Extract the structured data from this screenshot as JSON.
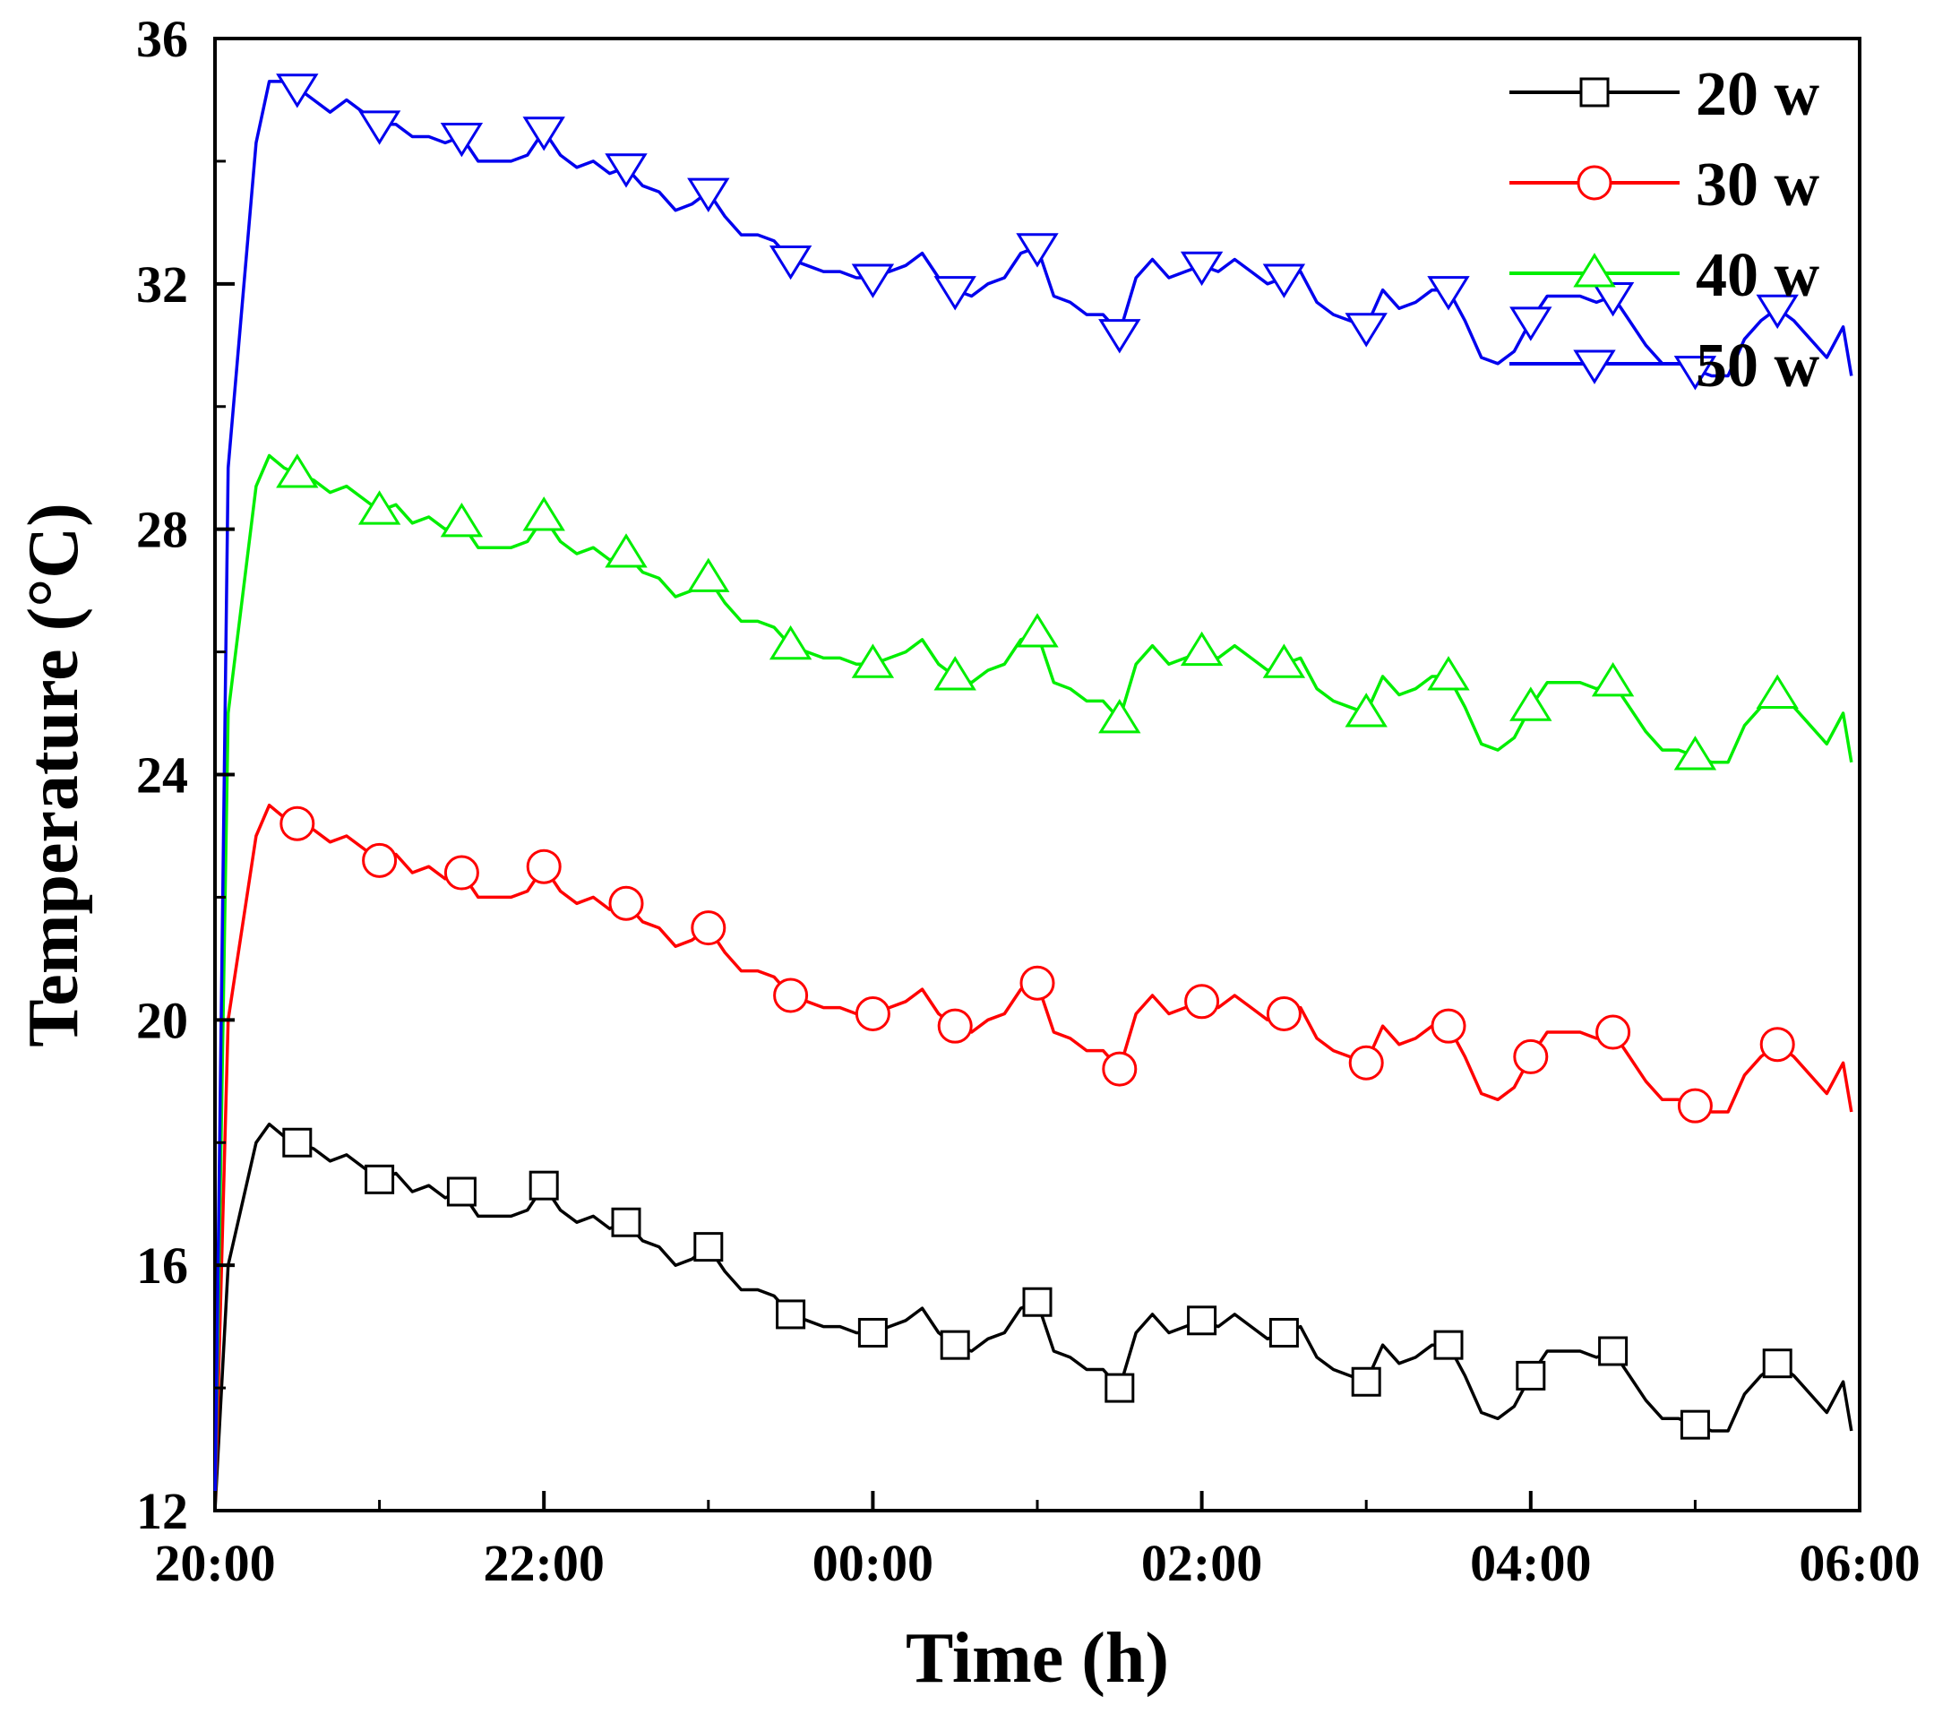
{
  "chart_data": {
    "type": "line",
    "title": "",
    "xlabel": "Time (h)",
    "ylabel": "Temperature (°C)",
    "xlim": [
      0,
      10
    ],
    "ylim": [
      12,
      36
    ],
    "xticks": [
      0,
      2,
      4,
      6,
      8,
      10
    ],
    "xtick_labels": [
      "20:00",
      "22:00",
      "00:00",
      "02:00",
      "04:00",
      "06:00"
    ],
    "yticks": [
      12,
      16,
      20,
      24,
      28,
      32,
      36
    ],
    "ytick_labels": [
      "12",
      "16",
      "20",
      "24",
      "28",
      "32",
      "36"
    ],
    "grid": false,
    "legend_position": "top-right",
    "x": [
      0,
      0.08,
      0.25,
      0.33,
      0.42,
      0.5,
      0.6,
      0.7,
      0.8,
      0.9,
      1.0,
      1.1,
      1.2,
      1.3,
      1.4,
      1.5,
      1.6,
      1.7,
      1.8,
      1.9,
      2.0,
      2.1,
      2.2,
      2.3,
      2.4,
      2.5,
      2.6,
      2.7,
      2.8,
      2.9,
      3.0,
      3.1,
      3.2,
      3.3,
      3.4,
      3.5,
      3.6,
      3.7,
      3.8,
      3.9,
      4.0,
      4.1,
      4.2,
      4.3,
      4.4,
      4.5,
      4.6,
      4.7,
      4.8,
      4.9,
      5.0,
      5.1,
      5.2,
      5.3,
      5.4,
      5.5,
      5.6,
      5.7,
      5.8,
      5.9,
      6.0,
      6.1,
      6.2,
      6.3,
      6.4,
      6.5,
      6.6,
      6.7,
      6.8,
      6.9,
      7.0,
      7.1,
      7.2,
      7.3,
      7.4,
      7.5,
      7.6,
      7.7,
      7.8,
      7.9,
      8.0,
      8.1,
      8.2,
      8.3,
      8.4,
      8.5,
      8.6,
      8.7,
      8.8,
      8.9,
      9.0,
      9.1,
      9.2,
      9.3,
      9.4,
      9.5,
      9.6,
      9.7,
      9.8,
      9.9,
      9.95
    ],
    "series": [
      {
        "name": "20 w",
        "color": "#000000",
        "marker": "square",
        "marker_x": [
          0.5,
          1.0,
          1.5,
          2.0,
          2.5,
          3.0,
          3.5,
          4.0,
          4.5,
          5.0,
          5.5,
          6.0,
          6.5,
          7.0,
          7.5,
          8.0,
          8.5,
          9.0,
          9.5
        ],
        "values": [
          12.0,
          16.0,
          18.0,
          18.3,
          18.1,
          18.0,
          17.9,
          17.7,
          17.8,
          17.6,
          17.4,
          17.5,
          17.2,
          17.3,
          17.1,
          17.2,
          16.8,
          16.8,
          16.8,
          16.9,
          17.3,
          16.9,
          16.7,
          16.8,
          16.6,
          16.7,
          16.4,
          16.3,
          16.0,
          16.1,
          16.3,
          15.9,
          15.6,
          15.6,
          15.5,
          15.2,
          15.1,
          15.0,
          15.0,
          14.9,
          14.9,
          15.0,
          15.1,
          15.3,
          14.9,
          14.7,
          14.6,
          14.8,
          14.9,
          15.3,
          15.4,
          14.6,
          14.5,
          14.3,
          14.3,
          14.0,
          14.9,
          15.2,
          14.9,
          15.0,
          15.1,
          15.0,
          15.2,
          15.0,
          14.8,
          14.9,
          15.0,
          14.5,
          14.3,
          14.2,
          14.1,
          14.7,
          14.4,
          14.5,
          14.7,
          14.7,
          14.2,
          13.6,
          13.5,
          13.7,
          14.2,
          14.6,
          14.6,
          14.6,
          14.5,
          14.6,
          14.2,
          13.8,
          13.5,
          13.5,
          13.4,
          13.3,
          13.3,
          13.9,
          14.2,
          14.4,
          14.2,
          13.9,
          13.6,
          14.1,
          13.3
        ]
      },
      {
        "name": "30 w",
        "color": "#ff0000",
        "marker": "circle",
        "marker_x": [
          0.5,
          1.0,
          1.5,
          2.0,
          2.5,
          3.0,
          3.5,
          4.0,
          4.5,
          5.0,
          5.5,
          6.0,
          6.5,
          7.0,
          7.5,
          8.0,
          8.5,
          9.0,
          9.5
        ],
        "values": [
          12.0,
          20.0,
          23.0,
          23.5,
          23.3,
          23.2,
          23.1,
          22.9,
          23.0,
          22.8,
          22.6,
          22.7,
          22.4,
          22.5,
          22.3,
          22.4,
          22.0,
          22.0,
          22.0,
          22.1,
          22.5,
          22.1,
          21.9,
          22.0,
          21.8,
          21.9,
          21.6,
          21.5,
          21.2,
          21.3,
          21.5,
          21.1,
          20.8,
          20.8,
          20.7,
          20.4,
          20.3,
          20.2,
          20.2,
          20.1,
          20.1,
          20.2,
          20.3,
          20.5,
          20.1,
          19.9,
          19.8,
          20.0,
          20.1,
          20.5,
          20.6,
          19.8,
          19.7,
          19.5,
          19.5,
          19.2,
          20.1,
          20.4,
          20.1,
          20.2,
          20.3,
          20.2,
          20.4,
          20.2,
          20.0,
          20.1,
          20.2,
          19.7,
          19.5,
          19.4,
          19.3,
          19.9,
          19.6,
          19.7,
          19.9,
          19.9,
          19.4,
          18.8,
          18.7,
          18.9,
          19.4,
          19.8,
          19.8,
          19.8,
          19.7,
          19.8,
          19.4,
          19.0,
          18.7,
          18.7,
          18.6,
          18.5,
          18.5,
          19.1,
          19.4,
          19.6,
          19.4,
          19.1,
          18.8,
          19.3,
          18.5
        ]
      },
      {
        "name": "40 w",
        "color": "#00ee00",
        "marker": "triangle-up",
        "marker_x": [
          0.5,
          1.0,
          1.5,
          2.0,
          2.5,
          3.0,
          3.5,
          4.0,
          4.5,
          5.0,
          5.5,
          6.0,
          6.5,
          7.0,
          7.5,
          8.0,
          8.5,
          9.0,
          9.5
        ],
        "values": [
          12.0,
          25.0,
          28.7,
          29.2,
          29.0,
          28.9,
          28.8,
          28.6,
          28.7,
          28.5,
          28.3,
          28.4,
          28.1,
          28.2,
          28.0,
          28.1,
          27.7,
          27.7,
          27.7,
          27.8,
          28.2,
          27.8,
          27.6,
          27.7,
          27.5,
          27.6,
          27.3,
          27.2,
          26.9,
          27.0,
          27.2,
          26.8,
          26.5,
          26.5,
          26.4,
          26.1,
          26.0,
          25.9,
          25.9,
          25.8,
          25.8,
          25.9,
          26.0,
          26.2,
          25.8,
          25.6,
          25.5,
          25.7,
          25.8,
          26.2,
          26.3,
          25.5,
          25.4,
          25.2,
          25.2,
          24.9,
          25.8,
          26.1,
          25.8,
          25.9,
          26.0,
          25.9,
          26.1,
          25.9,
          25.7,
          25.8,
          25.9,
          25.4,
          25.2,
          25.1,
          25.0,
          25.6,
          25.3,
          25.4,
          25.6,
          25.6,
          25.1,
          24.5,
          24.4,
          24.6,
          25.1,
          25.5,
          25.5,
          25.5,
          25.4,
          25.5,
          25.1,
          24.7,
          24.4,
          24.4,
          24.3,
          24.2,
          24.2,
          24.8,
          25.1,
          25.3,
          25.1,
          24.8,
          24.5,
          25.0,
          24.2
        ]
      },
      {
        "name": "50 w",
        "color": "#0000ee",
        "marker": "triangle-down",
        "marker_x": [
          0.5,
          1.0,
          1.5,
          2.0,
          2.5,
          3.0,
          3.5,
          4.0,
          4.5,
          5.0,
          5.5,
          6.0,
          6.5,
          7.0,
          7.5,
          8.0,
          8.5,
          9.0,
          9.5
        ],
        "values": [
          12.0,
          29.0,
          34.3,
          35.3,
          35.3,
          35.2,
          35.0,
          34.8,
          35.0,
          34.8,
          34.6,
          34.6,
          34.4,
          34.4,
          34.3,
          34.4,
          34.0,
          34.0,
          34.0,
          34.1,
          34.5,
          34.1,
          33.9,
          34.0,
          33.8,
          33.9,
          33.6,
          33.5,
          33.2,
          33.3,
          33.5,
          33.1,
          32.8,
          32.8,
          32.7,
          32.4,
          32.3,
          32.2,
          32.2,
          32.1,
          32.1,
          32.2,
          32.3,
          32.5,
          32.1,
          31.9,
          31.8,
          32.0,
          32.1,
          32.5,
          32.6,
          31.8,
          31.7,
          31.5,
          31.5,
          31.2,
          32.1,
          32.4,
          32.1,
          32.2,
          32.3,
          32.2,
          32.4,
          32.2,
          32.0,
          32.1,
          32.2,
          31.7,
          31.5,
          31.4,
          31.3,
          31.9,
          31.6,
          31.7,
          31.9,
          31.9,
          31.4,
          30.8,
          30.7,
          30.9,
          31.4,
          31.8,
          31.8,
          31.8,
          31.7,
          31.8,
          31.4,
          31.0,
          30.7,
          30.7,
          30.6,
          30.5,
          30.5,
          31.1,
          31.4,
          31.6,
          31.4,
          31.1,
          30.8,
          31.3,
          30.5
        ]
      }
    ]
  }
}
